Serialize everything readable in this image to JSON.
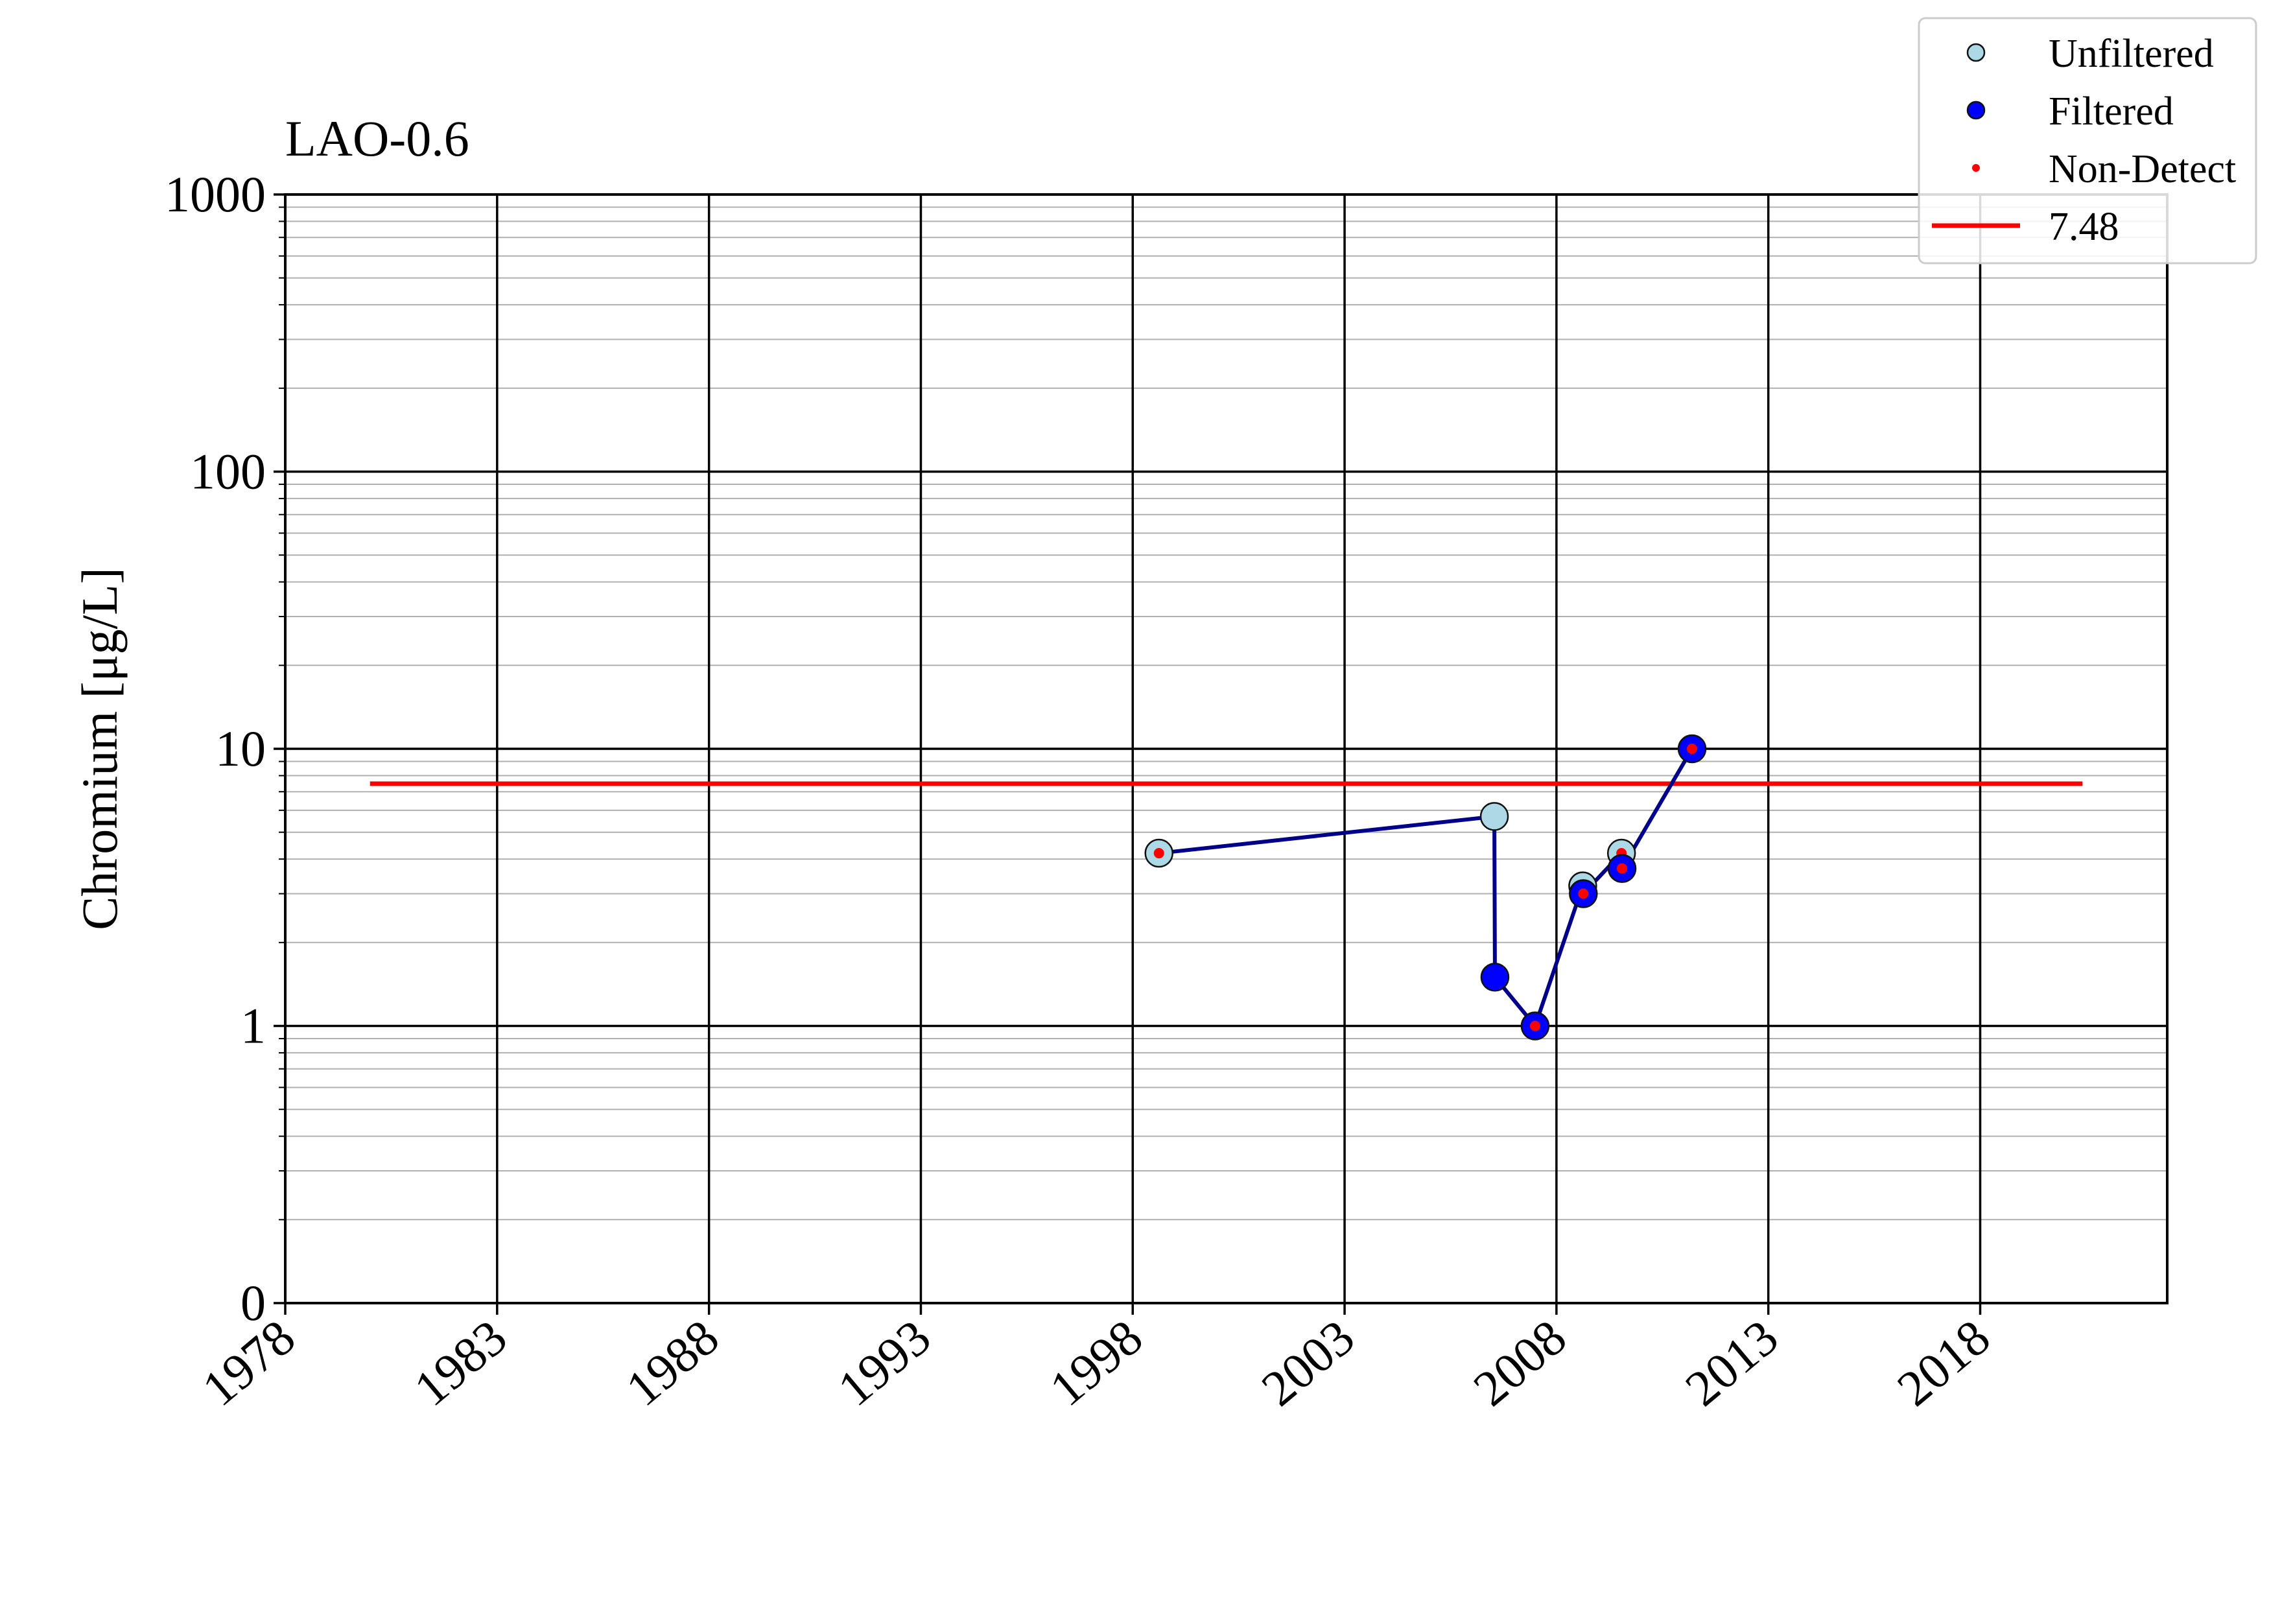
{
  "chart_data": {
    "type": "line",
    "title": "LAO-0.6",
    "xlabel": "",
    "ylabel": "Chromium [μg/L]",
    "x_scale": "date",
    "y_scale": "log",
    "xlim": [
      "1978-01-01",
      "2022-06-01"
    ],
    "ylim": [
      0.1,
      1000
    ],
    "x_ticks": [
      "1978",
      "1983",
      "1988",
      "1993",
      "1998",
      "2003",
      "2008",
      "2013",
      "2018"
    ],
    "y_ticks": [
      {
        "value": 0.1,
        "label": "0"
      },
      {
        "value": 1,
        "label": "1"
      },
      {
        "value": 10,
        "label": "10"
      },
      {
        "value": 100,
        "label": "100"
      },
      {
        "value": 1000,
        "label": "1000"
      }
    ],
    "grid": true,
    "legend_position": "top-right",
    "series": [
      {
        "name": "Unfiltered",
        "marker": "circle",
        "color": "#add8e6",
        "points": [
          {
            "x": "1998-08-15",
            "y": 4.2,
            "non_detect": true
          },
          {
            "x": "2006-07-15",
            "y": 5.7,
            "non_detect": false
          },
          {
            "x": "2008-08-15",
            "y": 3.2,
            "non_detect": false
          },
          {
            "x": "2009-07-15",
            "y": 4.2,
            "non_detect": true
          }
        ]
      },
      {
        "name": "Filtered",
        "marker": "circle",
        "color": "#0000ff",
        "points": [
          {
            "x": "2006-07-20",
            "y": 1.5,
            "non_detect": false
          },
          {
            "x": "2007-07-01",
            "y": 1.0,
            "non_detect": true
          },
          {
            "x": "2008-08-20",
            "y": 3.0,
            "non_detect": true
          },
          {
            "x": "2009-07-20",
            "y": 3.7,
            "non_detect": true
          },
          {
            "x": "2011-03-15",
            "y": 10.0,
            "non_detect": true
          }
        ]
      }
    ],
    "connecting_line": {
      "color": "#00008b",
      "points": [
        {
          "x": "1998-08-15",
          "y": 4.2
        },
        {
          "x": "2006-07-15",
          "y": 5.7
        },
        {
          "x": "2006-07-20",
          "y": 1.5
        },
        {
          "x": "2007-07-01",
          "y": 1.0
        },
        {
          "x": "2008-08-15",
          "y": 3.2
        },
        {
          "x": "2008-08-20",
          "y": 3.0
        },
        {
          "x": "2009-07-15",
          "y": 4.2
        },
        {
          "x": "2009-07-20",
          "y": 3.7
        },
        {
          "x": "2011-03-15",
          "y": 10.0
        }
      ]
    },
    "reference_line": {
      "name": "7.48",
      "value": 7.48,
      "color": "#ff0000",
      "x_start": "1980-01-01",
      "x_end": "2020-06-01"
    },
    "legend": [
      {
        "label": "Unfiltered",
        "kind": "marker",
        "color": "#add8e6"
      },
      {
        "label": "Filtered",
        "kind": "marker",
        "color": "#0000ff"
      },
      {
        "label": "Non-Detect",
        "kind": "dot",
        "color": "#ff0000"
      },
      {
        "label": "7.48",
        "kind": "line",
        "color": "#ff0000"
      }
    ]
  }
}
